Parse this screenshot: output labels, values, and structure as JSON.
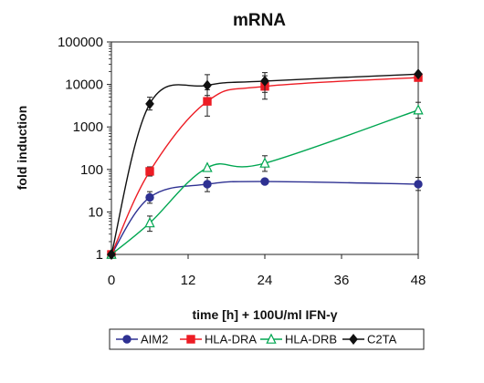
{
  "chart_data": {
    "type": "line",
    "title": "mRNA",
    "xlabel": "time [h] + 100U/ml IFN-γ",
    "ylabel": "fold induction",
    "x_ticks": [
      "0",
      "12",
      "24",
      "36",
      "48"
    ],
    "y_ticks": [
      "1",
      "10",
      "100",
      "1000",
      "10000",
      "100000"
    ],
    "xlim": [
      0,
      48
    ],
    "ylim": [
      1,
      100000
    ],
    "y_scale": "log",
    "grid": false,
    "legend_position": "bottom",
    "series": [
      {
        "name": "AIM2",
        "color": "#2e3192",
        "marker": "circle-filled",
        "x": [
          0,
          6,
          15,
          24,
          48
        ],
        "y": [
          1,
          22,
          45,
          52,
          45
        ],
        "err_low": [
          1,
          16,
          30,
          52,
          32
        ],
        "err_high": [
          1,
          30,
          65,
          52,
          65
        ]
      },
      {
        "name": "HLA-DRA",
        "color": "#ed1c24",
        "marker": "square-filled",
        "x": [
          0,
          6,
          15,
          24,
          48
        ],
        "y": [
          1,
          90,
          4000,
          9000,
          14500
        ],
        "err_low": [
          1,
          70,
          1800,
          4500,
          14500
        ],
        "err_high": [
          1,
          115,
          7500,
          16000,
          14500
        ]
      },
      {
        "name": "HLA-DRB",
        "color": "#00a651",
        "marker": "triangle-open",
        "x": [
          0,
          6,
          15,
          24,
          48
        ],
        "y": [
          1,
          5.5,
          110,
          140,
          2500
        ],
        "err_low": [
          1,
          3.5,
          110,
          90,
          1600
        ],
        "err_high": [
          1,
          8,
          110,
          210,
          3800
        ]
      },
      {
        "name": "C2TA",
        "color": "#111111",
        "marker": "diamond-filled",
        "x": [
          0,
          6,
          15,
          24,
          48
        ],
        "y": [
          1,
          3500,
          9500,
          12000,
          17500
        ],
        "err_low": [
          1,
          2500,
          5500,
          6500,
          17500
        ],
        "err_high": [
          1,
          5000,
          17000,
          19000,
          17500
        ]
      }
    ]
  }
}
